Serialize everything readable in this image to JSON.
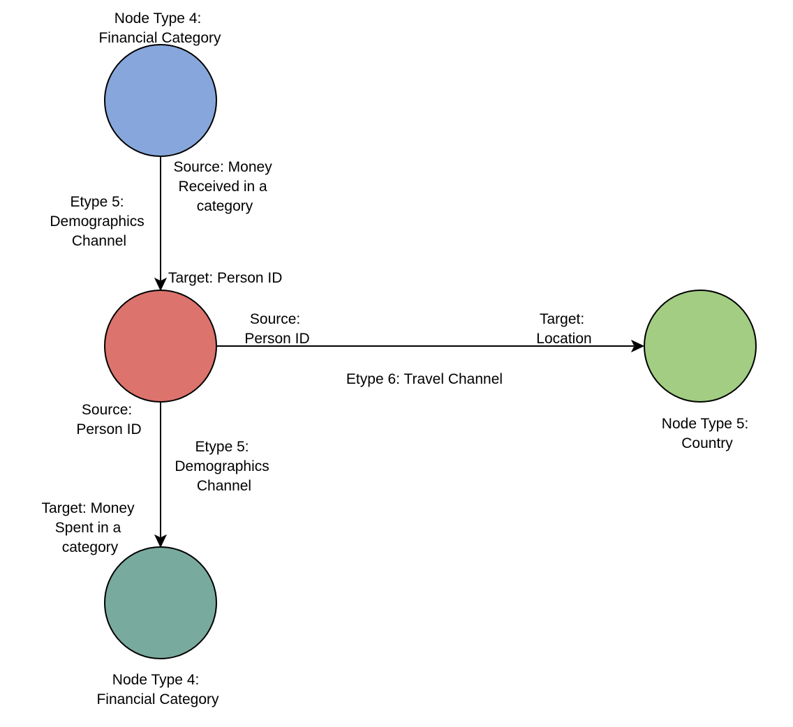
{
  "nodes": {
    "financial_top": {
      "label": [
        "Node Type 4:",
        "Financial Category"
      ],
      "color": "#87A7DC"
    },
    "person": {
      "label": [],
      "color": "#DC736D"
    },
    "country": {
      "label": [
        "Node Type 5:",
        "Country"
      ],
      "color": "#A2CD82"
    },
    "financial_bottom": {
      "label": [
        "Node Type 4:",
        "Financial Category"
      ],
      "color": "#79AA9E"
    }
  },
  "edges": {
    "received": {
      "source_label": [
        "Source: Money",
        "Received in a",
        "category"
      ],
      "type_label": [
        "Etype 5:",
        "Demographics",
        "Channel"
      ],
      "target_label": [
        "Target: Person ID"
      ]
    },
    "travel": {
      "source_label": [
        "Source:",
        "Person ID"
      ],
      "target_label": [
        "Target:",
        "Location"
      ],
      "type_label": [
        "Etype 6: Travel Channel"
      ]
    },
    "spent": {
      "source_label": [
        "Source:",
        "Person ID"
      ],
      "type_label": [
        "Etype 5:",
        "Demographics",
        "Channel"
      ],
      "target_label": [
        "Target: Money",
        "Spent in a",
        "category"
      ]
    }
  }
}
